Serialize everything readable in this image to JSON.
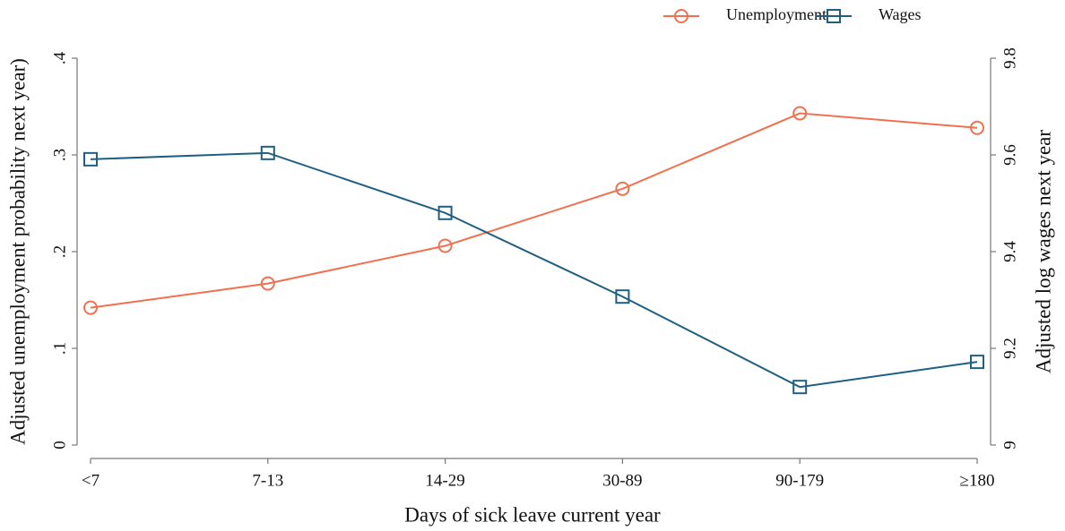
{
  "chart_data": {
    "type": "line",
    "x_label": "Days of sick leave current year",
    "y_label": "Adjusted unemployment probability next year)",
    "y2_label": "Adjusted log wages next year",
    "categories": [
      "<7",
      "7-13",
      "14-29",
      "30-89",
      "90-179",
      "≥180"
    ],
    "series": [
      {
        "name": "Unemployment",
        "color": "#f0704f",
        "marker": "circle",
        "values": [
          0.142,
          0.167,
          0.206,
          0.265,
          0.343,
          0.328
        ]
      },
      {
        "name": "Wages",
        "color": "#1f5f82",
        "marker": "square",
        "axis": "y2",
        "values": [
          9.591,
          9.604,
          9.48,
          9.307,
          9.12,
          9.172
        ]
      }
    ],
    "ylim": [
      0,
      0.4
    ],
    "yticks": [
      0,
      {
        "value": 0.1,
        "label": ".1"
      },
      {
        "value": 0.2,
        "label": ".2"
      },
      {
        "value": 0.3,
        "label": ".3"
      },
      {
        "value": 0.4,
        "label": ".4"
      }
    ],
    "y2lim": [
      9,
      9.8
    ],
    "y2ticks": [
      9,
      9.2,
      9.4,
      9.6,
      9.8
    ],
    "legend": "top-right"
  }
}
